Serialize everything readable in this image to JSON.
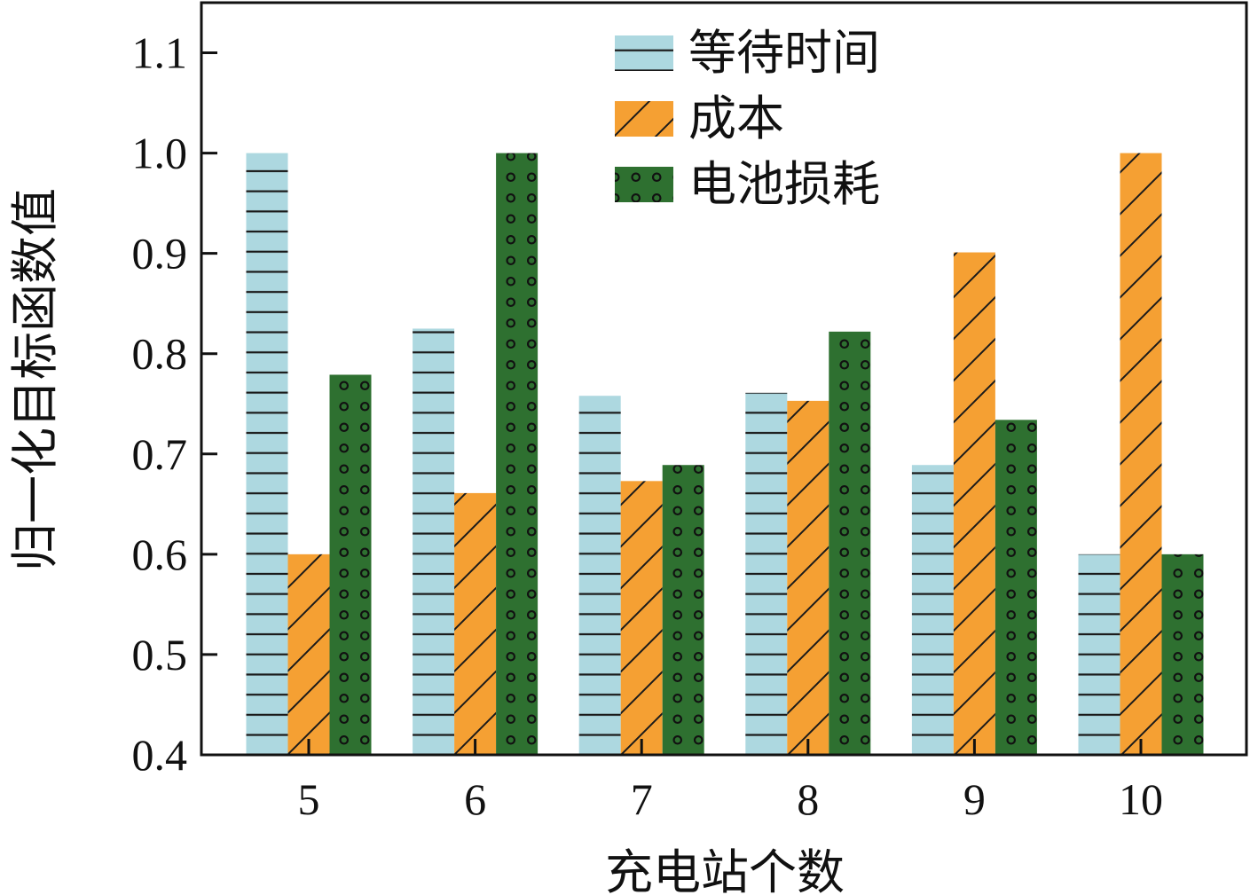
{
  "chart_data": {
    "type": "bar",
    "categories": [
      "5",
      "6",
      "7",
      "8",
      "9",
      "10"
    ],
    "series": [
      {
        "name": "等待时间",
        "values": [
          1.0,
          0.825,
          0.758,
          0.761,
          0.689,
          0.6
        ],
        "color": "#add8e0",
        "pattern": "horizontal-lines"
      },
      {
        "name": "成本",
        "values": [
          0.6,
          0.661,
          0.673,
          0.753,
          0.901,
          1.0
        ],
        "color": "#f5a033",
        "pattern": "diagonal-lines"
      },
      {
        "name": "电池损耗",
        "values": [
          0.779,
          1.0,
          0.689,
          0.822,
          0.734,
          0.6
        ],
        "color": "#2e7030",
        "pattern": "circles"
      }
    ],
    "xlabel": "充电站个数",
    "ylabel": "归一化目标函数值",
    "ylim": [
      0.4,
      1.15
    ],
    "yticks": [
      "0.4",
      "0.5",
      "0.6",
      "0.7",
      "0.8",
      "0.9",
      "1.0",
      "1.1"
    ],
    "legend_position": "top-center",
    "grid": false
  }
}
